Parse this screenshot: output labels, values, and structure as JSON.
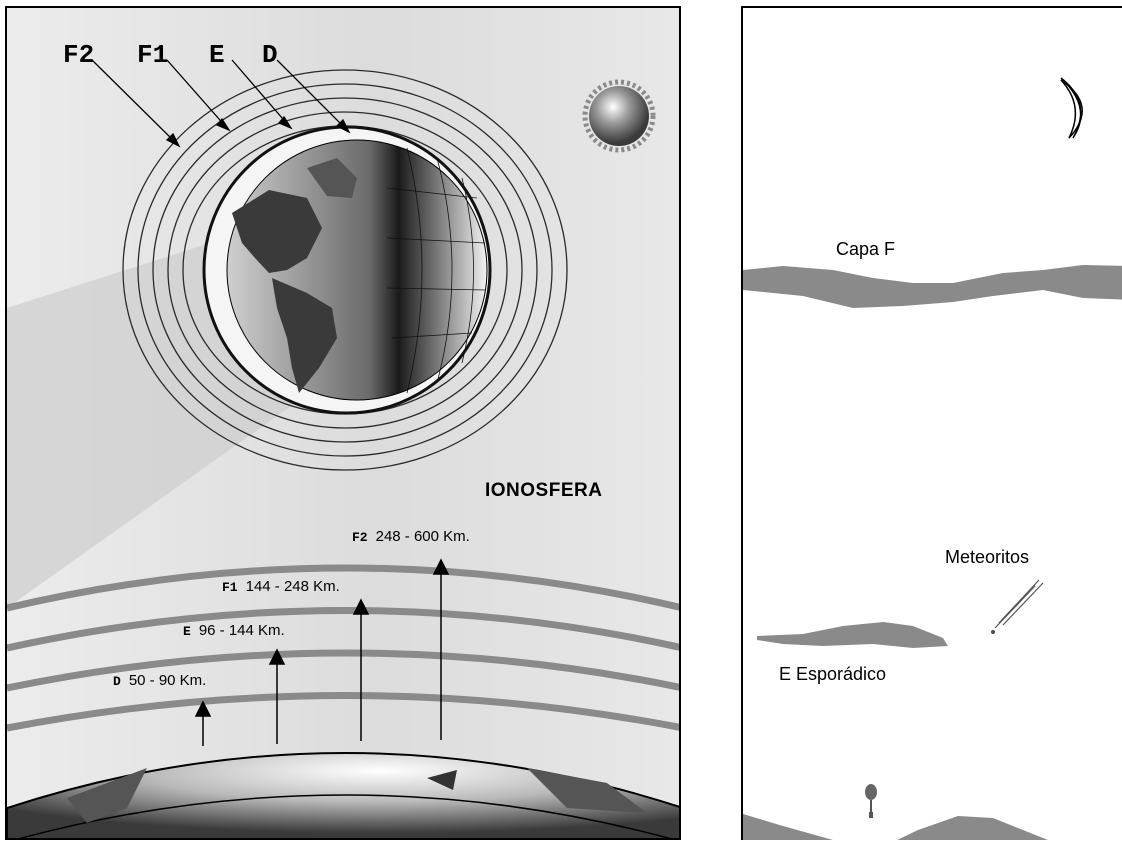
{
  "left": {
    "layers_top": [
      "F2",
      "F1",
      "E",
      "D"
    ],
    "title": "IONOSFERA",
    "altitudes": [
      {
        "tag": "F2",
        "range": "248 - 600 Km."
      },
      {
        "tag": "F1",
        "range": "144 - 248 Km."
      },
      {
        "tag": "E",
        "range": "96 - 144 Km."
      },
      {
        "tag": "D",
        "range": "50 - 90 Km."
      }
    ]
  },
  "right": {
    "capa_f": "Capa F",
    "meteoritos": "Meteoritos",
    "e_esporadico": "E Esporádico"
  },
  "colors": {
    "layer_band": "#8a8a8a",
    "ring": "#2a2a2a",
    "text": "#000000"
  }
}
